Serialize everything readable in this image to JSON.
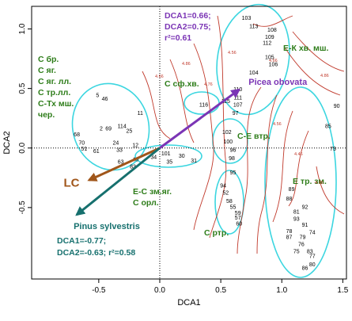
{
  "chart_data": {
    "type": "scatter",
    "xlabel": "DCA1",
    "ylabel": "DCA2",
    "xlim": [
      -1.05,
      1.53
    ],
    "ylim": [
      -1.1,
      1.19
    ],
    "xticks": [
      -0.5,
      {
        "value": 0,
        "label": "0.0"
      },
      0.5,
      {
        "value": 1,
        "label": "1.0"
      },
      1.5
    ],
    "yticks": [
      -0.5,
      {
        "value": 0,
        "label": "0.0"
      },
      0.5,
      {
        "value": 1,
        "label": "1.0"
      }
    ],
    "points": [
      {
        "label": "103",
        "x": 0.71,
        "y": 1.09
      },
      {
        "label": "113",
        "x": 0.77,
        "y": 1.02
      },
      {
        "label": "108",
        "x": 0.92,
        "y": 0.99
      },
      {
        "label": "109",
        "x": 0.9,
        "y": 0.93
      },
      {
        "label": "112",
        "x": 0.88,
        "y": 0.88
      },
      {
        "label": "105",
        "x": 0.9,
        "y": 0.76
      },
      {
        "label": "106",
        "x": 0.93,
        "y": 0.7
      },
      {
        "label": "104",
        "x": 0.77,
        "y": 0.63
      },
      {
        "label": "110",
        "x": 0.64,
        "y": 0.49
      },
      {
        "label": "111",
        "x": 0.64,
        "y": 0.42
      },
      {
        "label": "107",
        "x": 0.64,
        "y": 0.36
      },
      {
        "label": "97",
        "x": 0.62,
        "y": 0.29
      },
      {
        "label": "90",
        "x": 1.45,
        "y": 0.35
      },
      {
        "label": "85",
        "x": 1.38,
        "y": 0.18
      },
      {
        "label": "73",
        "x": 1.42,
        "y": -0.01
      },
      {
        "label": "102",
        "x": 0.55,
        "y": 0.13
      },
      {
        "label": "100",
        "x": 0.56,
        "y": 0.05
      },
      {
        "label": "96",
        "x": 0.6,
        "y": -0.02
      },
      {
        "label": "98",
        "x": 0.59,
        "y": -0.09
      },
      {
        "label": "95",
        "x": 0.6,
        "y": -0.21
      },
      {
        "label": "94",
        "x": 0.52,
        "y": -0.32
      },
      {
        "label": "52",
        "x": 0.54,
        "y": -0.38
      },
      {
        "label": "58",
        "x": 0.57,
        "y": -0.45
      },
      {
        "label": "55",
        "x": 0.6,
        "y": -0.5
      },
      {
        "label": "59",
        "x": 0.64,
        "y": -0.55
      },
      {
        "label": "57",
        "x": 0.64,
        "y": -0.59
      },
      {
        "label": "60",
        "x": 0.65,
        "y": -0.64
      },
      {
        "label": "89",
        "x": 1.08,
        "y": -0.35
      },
      {
        "label": "88",
        "x": 1.06,
        "y": -0.43
      },
      {
        "label": "92",
        "x": 1.19,
        "y": -0.5
      },
      {
        "label": "81",
        "x": 1.12,
        "y": -0.54
      },
      {
        "label": "93",
        "x": 1.12,
        "y": -0.6
      },
      {
        "label": "91",
        "x": 1.19,
        "y": -0.65
      },
      {
        "label": "78",
        "x": 1.06,
        "y": -0.7
      },
      {
        "label": "87",
        "x": 1.06,
        "y": -0.75
      },
      {
        "label": "79",
        "x": 1.17,
        "y": -0.75
      },
      {
        "label": "74",
        "x": 1.25,
        "y": -0.71
      },
      {
        "label": "76",
        "x": 1.16,
        "y": -0.81
      },
      {
        "label": "75",
        "x": 1.12,
        "y": -0.87
      },
      {
        "label": "83",
        "x": 1.23,
        "y": -0.87
      },
      {
        "label": "77",
        "x": 1.25,
        "y": -0.91
      },
      {
        "label": "80",
        "x": 1.25,
        "y": -0.98
      },
      {
        "label": "86",
        "x": 1.19,
        "y": -1.01
      },
      {
        "label": "116",
        "x": 0.36,
        "y": 0.36
      },
      {
        "label": "115",
        "x": 0.54,
        "y": 0.39
      },
      {
        "label": "101",
        "x": 0.05,
        "y": -0.05
      },
      {
        "label": "34",
        "x": -0.05,
        "y": -0.08
      },
      {
        "label": "30",
        "x": 0.18,
        "y": -0.07
      },
      {
        "label": "31",
        "x": 0.28,
        "y": -0.11
      },
      {
        "label": "35",
        "x": 0.08,
        "y": -0.12
      },
      {
        "label": "5",
        "x": -0.51,
        "y": 0.44
      },
      {
        "label": "46",
        "x": -0.45,
        "y": 0.41
      },
      {
        "label": "11",
        "x": -0.16,
        "y": 0.29
      },
      {
        "label": "114",
        "x": -0.31,
        "y": 0.18
      },
      {
        "label": "2",
        "x": -0.48,
        "y": 0.16
      },
      {
        "label": "69",
        "x": -0.42,
        "y": 0.16
      },
      {
        "label": "25",
        "x": -0.25,
        "y": 0.14
      },
      {
        "label": "68",
        "x": -0.68,
        "y": 0.11
      },
      {
        "label": "12",
        "x": -0.2,
        "y": 0.02
      },
      {
        "label": "70",
        "x": -0.64,
        "y": 0.04
      },
      {
        "label": "24",
        "x": -0.36,
        "y": 0.04
      },
      {
        "label": "51",
        "x": -0.62,
        "y": -0.01
      },
      {
        "label": "33",
        "x": -0.33,
        "y": -0.02
      },
      {
        "label": "61",
        "x": -0.52,
        "y": -0.03
      },
      {
        "label": "63",
        "x": -0.32,
        "y": -0.12
      },
      {
        "label": "43",
        "x": -0.2,
        "y": -0.1
      },
      {
        "label": "83",
        "x": -0.22,
        "y": -0.16
      }
    ],
    "arrows": [
      {
        "name": "Picea obovata",
        "x": 0.65,
        "y": 0.49,
        "color": "#7b35b5"
      },
      {
        "name": "LC",
        "x": -0.58,
        "y": -0.27,
        "color": "#a0561a"
      },
      {
        "name": "Pinus  sylvestris",
        "x": -0.68,
        "y": -0.56,
        "color": "#16706e"
      }
    ],
    "annotations_top": [
      "DCA1=0.66;",
      "DCA2=0.75;",
      "r²=0.61"
    ],
    "annotations_bottom": [
      "DCA1=-0.77;",
      "DCA2=-0.63;  r²=0.58"
    ],
    "groups": [
      "С бр.",
      "С яг.",
      "С яг. лл.",
      "С тр.лл.",
      "С-Тх мш.",
      "чер.",
      "С сф.хв.",
      "Е-К хв. мш.",
      "С-Е втр.",
      "Е тр. зм.",
      "Е-С зм.яг.",
      "С орл.",
      "С ртр."
    ],
    "contour_labels": [
      "4.66",
      "4.86",
      "4.76",
      "4.56",
      "4.66",
      "4.56",
      "4.46",
      "4.86",
      "4.76"
    ]
  }
}
